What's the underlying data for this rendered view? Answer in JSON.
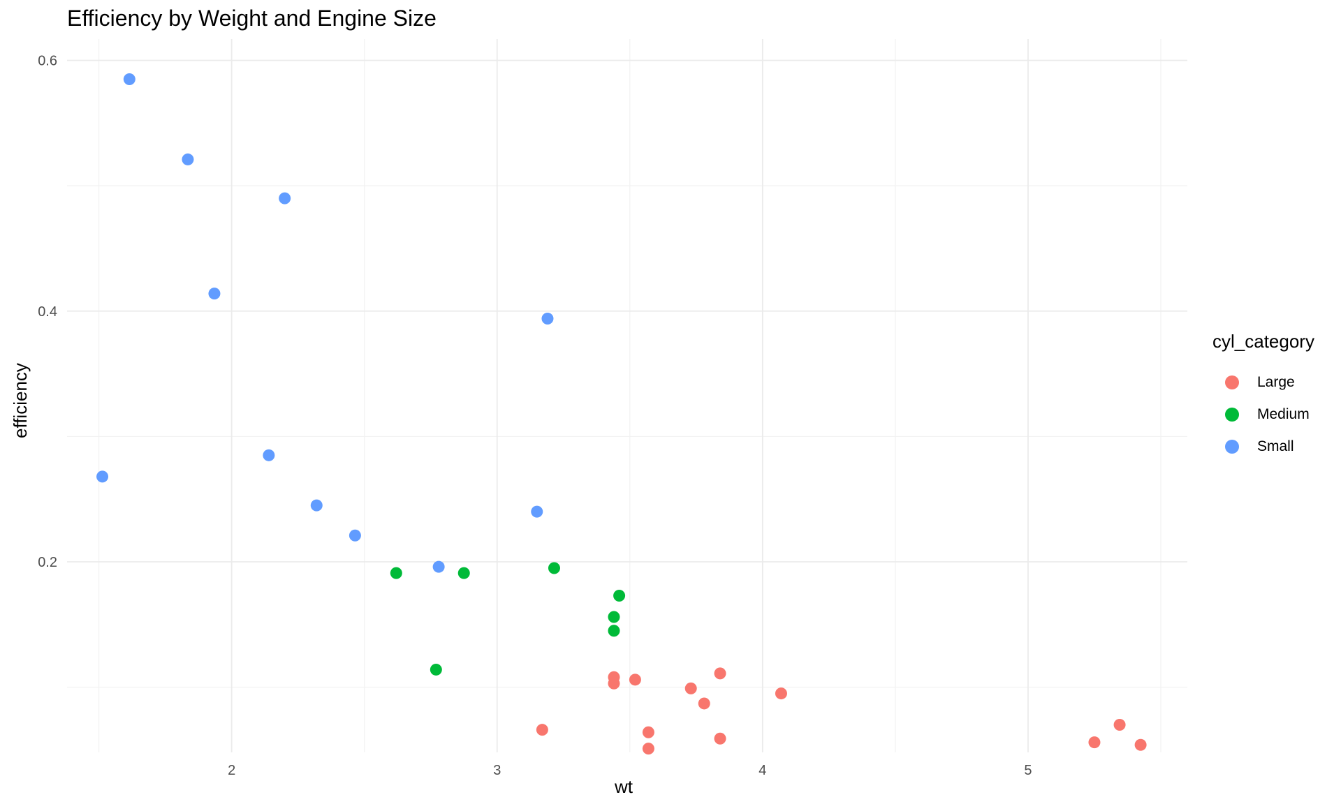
{
  "chart_data": {
    "type": "scatter",
    "title": "Efficiency by Weight and Engine Size",
    "xlabel": "wt",
    "ylabel": "efficiency",
    "xlim": [
      1.38,
      5.6
    ],
    "ylim": [
      0.048,
      0.617
    ],
    "x_ticks": [
      2,
      3,
      4,
      5
    ],
    "y_ticks": [
      0.2,
      0.4,
      0.6
    ],
    "grid": true,
    "legend": {
      "title": "cyl_category",
      "position": "right"
    },
    "series": [
      {
        "name": "Large",
        "color": "#F8766D",
        "points": [
          [
            3.44,
            0.108
          ],
          [
            3.44,
            0.103
          ],
          [
            3.52,
            0.106
          ],
          [
            3.84,
            0.111
          ],
          [
            3.73,
            0.099
          ],
          [
            3.78,
            0.087
          ],
          [
            4.07,
            0.095
          ],
          [
            3.17,
            0.066
          ],
          [
            3.57,
            0.064
          ],
          [
            3.57,
            0.051
          ],
          [
            3.84,
            0.059
          ],
          [
            5.25,
            0.056
          ],
          [
            5.345,
            0.07
          ],
          [
            5.424,
            0.054
          ]
        ]
      },
      {
        "name": "Medium",
        "color": "#00BA38",
        "points": [
          [
            2.62,
            0.191
          ],
          [
            2.875,
            0.191
          ],
          [
            3.215,
            0.195
          ],
          [
            3.46,
            0.173
          ],
          [
            3.44,
            0.156
          ],
          [
            3.44,
            0.145
          ],
          [
            2.77,
            0.114
          ]
        ]
      },
      {
        "name": "Small",
        "color": "#619CFF",
        "points": [
          [
            1.615,
            0.585
          ],
          [
            1.835,
            0.521
          ],
          [
            2.2,
            0.49
          ],
          [
            1.935,
            0.414
          ],
          [
            3.19,
            0.394
          ],
          [
            2.14,
            0.285
          ],
          [
            1.513,
            0.268
          ],
          [
            2.32,
            0.245
          ],
          [
            3.15,
            0.24
          ],
          [
            2.465,
            0.221
          ],
          [
            2.78,
            0.196
          ]
        ]
      }
    ]
  }
}
